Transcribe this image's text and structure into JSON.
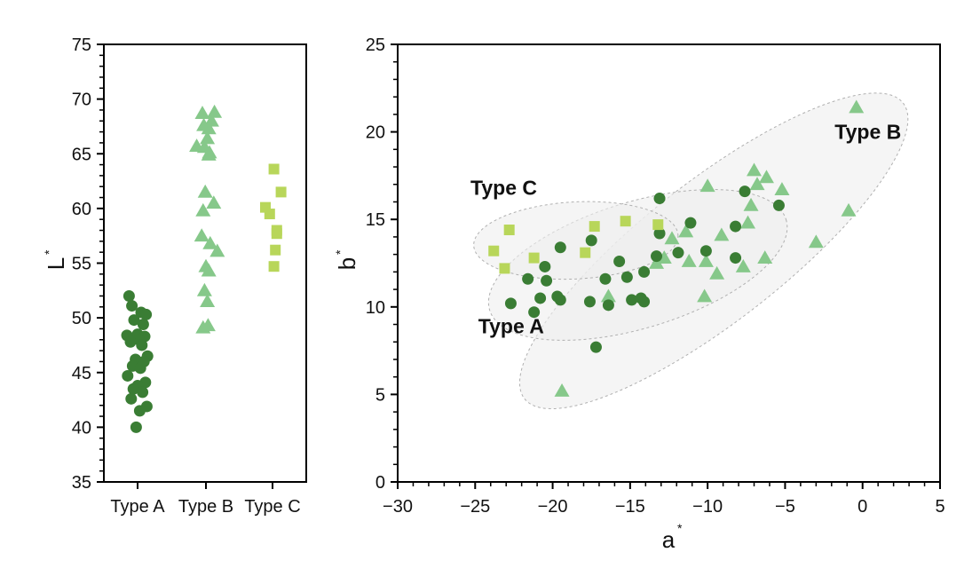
{
  "colors": {
    "type_a": "#3a7d34",
    "type_b": "#86c88a",
    "type_c": "#b8d65a",
    "ellipse_fill": "#efefef",
    "ellipse_stroke": "#b0b0b0"
  },
  "chart_data": [
    {
      "type": "scatter",
      "title": "",
      "xlabel": "",
      "ylabel": "L",
      "ylabel_superscript": "*",
      "categories": [
        "Type A",
        "Type B",
        "Type C"
      ],
      "ylim": [
        35,
        75
      ],
      "yticks": [
        "35",
        "40",
        "45",
        "50",
        "55",
        "60",
        "65",
        "70",
        "75"
      ],
      "grid": false,
      "series": [
        {
          "name": "Type A",
          "marker": "circle",
          "category": "Type A",
          "jitter": [
            -0.12,
            -0.08,
            0.05,
            0.12,
            -0.05,
            0.08,
            0.0,
            -0.15,
            0.1,
            0.02,
            -0.1,
            0.06,
            0.14,
            -0.03,
            0.09,
            -0.07,
            0.04,
            -0.14,
            0.11,
            0.0,
            -0.06,
            0.07,
            -0.09,
            0.13,
            0.03,
            -0.02
          ],
          "values": [
            52.0,
            51.1,
            50.5,
            50.3,
            49.8,
            49.4,
            48.5,
            48.4,
            48.3,
            48.0,
            47.8,
            47.5,
            46.5,
            46.2,
            46.0,
            45.6,
            45.4,
            44.7,
            44.1,
            43.8,
            43.5,
            43.2,
            42.6,
            41.9,
            41.5,
            40.0
          ]
        },
        {
          "name": "Type B",
          "marker": "triangle",
          "category": "Type B",
          "jitter": [
            -0.05,
            0.12,
            0.08,
            -0.03,
            0.04,
            0.02,
            -0.13,
            -0.02,
            0.05,
            0.04,
            -0.01,
            0.11,
            -0.04,
            -0.06,
            0.06,
            0.16,
            0.0,
            0.04,
            -0.02,
            0.02,
            -0.04,
            0.03
          ],
          "values": [
            68.7,
            68.8,
            68.0,
            67.6,
            67.3,
            66.4,
            65.7,
            65.6,
            65.1,
            64.9,
            61.5,
            60.5,
            59.8,
            57.5,
            56.8,
            56.1,
            54.7,
            54.3,
            52.5,
            51.5,
            49.1,
            49.3
          ]
        },
        {
          "name": "Type C",
          "marker": "square",
          "category": "Type C",
          "jitter": [
            0.02,
            0.12,
            -0.1,
            -0.04,
            0.06,
            0.06,
            0.04,
            0.02
          ],
          "values": [
            63.6,
            61.5,
            60.1,
            59.5,
            58.0,
            57.7,
            56.2,
            54.7
          ]
        }
      ]
    },
    {
      "type": "scatter",
      "title": "",
      "xlabel": "a",
      "xlabel_superscript": "*",
      "ylabel": "b",
      "ylabel_superscript": "*",
      "xlim": [
        -30,
        5
      ],
      "ylim": [
        0,
        25
      ],
      "xticks": [
        "−30",
        "−25",
        "−20",
        "−15",
        "−10",
        "−5",
        "0",
        "5"
      ],
      "yticks": [
        "0",
        "5",
        "10",
        "15",
        "20",
        "25"
      ],
      "grid": false,
      "annotations": [
        {
          "text": "Type C",
          "a": -25.3,
          "b": 16.4
        },
        {
          "text": "Type A",
          "a": -24.8,
          "b": 8.5
        },
        {
          "text": "Type B",
          "a": -1.8,
          "b": 19.6
        }
      ],
      "series": [
        {
          "name": "Type A",
          "marker": "circle",
          "points": [
            [
              -13.1,
              16.2
            ],
            [
              -19.5,
              13.4
            ],
            [
              -17.5,
              13.8
            ],
            [
              -20.5,
              12.3
            ],
            [
              -21.6,
              11.6
            ],
            [
              -20.4,
              11.5
            ],
            [
              -22.7,
              10.2
            ],
            [
              -21.2,
              9.7
            ],
            [
              -20.8,
              10.5
            ],
            [
              -19.7,
              10.6
            ],
            [
              -19.5,
              10.4
            ],
            [
              -17.6,
              10.3
            ],
            [
              -16.4,
              10.1
            ],
            [
              -16.6,
              11.6
            ],
            [
              -15.7,
              12.6
            ],
            [
              -15.2,
              11.7
            ],
            [
              -14.1,
              12.0
            ],
            [
              -14.9,
              10.4
            ],
            [
              -14.3,
              10.5
            ],
            [
              -14.1,
              10.3
            ],
            [
              -17.2,
              7.7
            ],
            [
              -13.1,
              14.2
            ],
            [
              -13.3,
              12.9
            ],
            [
              -11.1,
              14.8
            ],
            [
              -11.9,
              13.1
            ],
            [
              -10.1,
              13.2
            ],
            [
              -8.2,
              14.6
            ],
            [
              -7.6,
              16.6
            ],
            [
              -8.2,
              12.8
            ],
            [
              -5.4,
              15.8
            ]
          ]
        },
        {
          "name": "Type B",
          "marker": "triangle",
          "points": [
            [
              -0.4,
              21.4
            ],
            [
              -0.9,
              15.5
            ],
            [
              -3.0,
              13.7
            ],
            [
              -19.4,
              5.2
            ],
            [
              -16.4,
              10.6
            ],
            [
              -13.3,
              12.5
            ],
            [
              -12.8,
              12.8
            ],
            [
              -12.3,
              13.9
            ],
            [
              -11.4,
              14.3
            ],
            [
              -11.2,
              12.6
            ],
            [
              -10.0,
              16.9
            ],
            [
              -10.1,
              12.6
            ],
            [
              -10.2,
              10.6
            ],
            [
              -9.4,
              11.9
            ],
            [
              -9.1,
              14.1
            ],
            [
              -7.7,
              12.3
            ],
            [
              -7.4,
              14.8
            ],
            [
              -7.2,
              15.8
            ],
            [
              -7.0,
              17.8
            ],
            [
              -6.8,
              17.0
            ],
            [
              -6.2,
              17.4
            ],
            [
              -6.3,
              12.8
            ],
            [
              -5.2,
              16.7
            ]
          ]
        },
        {
          "name": "Type C",
          "marker": "square",
          "points": [
            [
              -23.8,
              13.2
            ],
            [
              -22.8,
              14.4
            ],
            [
              -23.1,
              12.2
            ],
            [
              -21.2,
              12.8
            ],
            [
              -17.3,
              14.6
            ],
            [
              -17.9,
              13.1
            ],
            [
              -15.3,
              14.9
            ],
            [
              -13.2,
              14.7
            ]
          ]
        }
      ],
      "ellipses": [
        {
          "name": "Type C",
          "center": [
            -18.5,
            13.8
          ],
          "rx": 6.6,
          "ry": 2.2,
          "angle_deg": 3
        },
        {
          "name": "Type A",
          "center": [
            -14.5,
            12.4
          ],
          "rx": 10.0,
          "ry": 3.6,
          "angle_deg": 17
        },
        {
          "name": "Type B",
          "center": [
            -9.6,
            13.2
          ],
          "rx": 15.5,
          "ry": 4.0,
          "angle_deg": 38
        }
      ]
    }
  ]
}
